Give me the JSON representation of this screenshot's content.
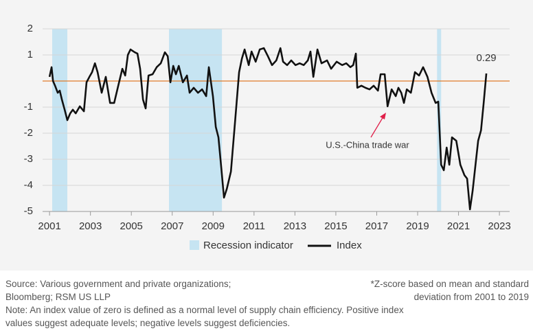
{
  "chart_data": {
    "type": "line",
    "xlim": [
      2000.66,
      2023.5
    ],
    "xticks": [
      2001,
      2003,
      2005,
      2007,
      2009,
      2011,
      2013,
      2015,
      2017,
      2019,
      2021,
      2023
    ],
    "ylim": [
      -5,
      2
    ],
    "yticks": [
      -5,
      -4,
      -3,
      -2,
      -1,
      1,
      2
    ],
    "grid": true,
    "reference_line": {
      "value": 0,
      "color": "#e07b2a"
    },
    "shaded_periods": {
      "name": "Recession indicator",
      "color": "#c6e4f2",
      "ranges": [
        [
          2001.13,
          2001.87
        ],
        [
          2006.84,
          2009.43
        ],
        [
          2019.95,
          2020.15
        ]
      ]
    },
    "series": [
      {
        "name": "Index",
        "color": "#111111",
        "x": [
          2001.0,
          2001.1,
          2001.17,
          2001.27,
          2001.4,
          2001.5,
          2001.6,
          2001.74,
          2001.87,
          2002.01,
          2002.14,
          2002.28,
          2002.48,
          2002.68,
          2002.81,
          2002.95,
          2003.08,
          2003.22,
          2003.35,
          2003.55,
          2003.75,
          2003.96,
          2004.16,
          2004.36,
          2004.56,
          2004.7,
          2004.83,
          2004.96,
          2005.17,
          2005.3,
          2005.43,
          2005.57,
          2005.7,
          2005.84,
          2006.04,
          2006.24,
          2006.44,
          2006.64,
          2006.78,
          2006.91,
          2007.05,
          2007.18,
          2007.32,
          2007.52,
          2007.72,
          2007.85,
          2008.05,
          2008.26,
          2008.46,
          2008.66,
          2008.79,
          2008.99,
          2009.13,
          2009.26,
          2009.4,
          2009.53,
          2009.67,
          2009.87,
          2010.07,
          2010.27,
          2010.41,
          2010.54,
          2010.74,
          2010.88,
          2011.08,
          2011.28,
          2011.48,
          2011.68,
          2011.88,
          2012.09,
          2012.29,
          2012.42,
          2012.62,
          2012.82,
          2013.03,
          2013.23,
          2013.43,
          2013.63,
          2013.76,
          2013.9,
          2014.1,
          2014.3,
          2014.57,
          2014.77,
          2015.04,
          2015.31,
          2015.51,
          2015.71,
          2015.85,
          2015.98,
          2016.05,
          2016.25,
          2016.45,
          2016.65,
          2016.85,
          2017.06,
          2017.19,
          2017.39,
          2017.53,
          2017.73,
          2017.93,
          2018.06,
          2018.2,
          2018.33,
          2018.47,
          2018.67,
          2018.87,
          2019.07,
          2019.27,
          2019.48,
          2019.68,
          2019.88,
          2020.01,
          2020.15,
          2020.28,
          2020.42,
          2020.55,
          2020.68,
          2020.89,
          2021.09,
          2021.29,
          2021.42,
          2021.56,
          2021.69,
          2021.83,
          2021.96,
          2022.1,
          2022.23,
          2022.36
        ],
        "values": [
          0.16,
          0.53,
          0,
          -0.18,
          -0.45,
          -0.37,
          -0.7,
          -1.1,
          -1.5,
          -1.24,
          -1.1,
          -1.24,
          -0.97,
          -1.16,
          -0.05,
          0.16,
          0.34,
          0.68,
          0.34,
          -0.45,
          0.16,
          -0.84,
          -0.84,
          -0.18,
          0.47,
          0.21,
          1.0,
          1.21,
          1.1,
          1.05,
          0.47,
          -0.71,
          -1.05,
          0.21,
          0.26,
          0.53,
          0.68,
          1.1,
          0.95,
          -0.05,
          0.58,
          0.26,
          0.58,
          -0.05,
          0.21,
          -0.45,
          -0.26,
          -0.45,
          -0.32,
          -0.58,
          0.53,
          -0.58,
          -1.76,
          -2.16,
          -3.34,
          -4.47,
          -4.13,
          -3.47,
          -1.58,
          0.34,
          0.87,
          1.21,
          0.61,
          1.13,
          0.74,
          1.21,
          1.26,
          0.95,
          0.61,
          0.79,
          1.26,
          0.74,
          0.61,
          0.79,
          0.61,
          0.68,
          0.61,
          0.79,
          1.13,
          0.16,
          1.21,
          0.68,
          0.79,
          0.47,
          0.74,
          0.61,
          0.68,
          0.53,
          0.61,
          1.05,
          -0.26,
          -0.18,
          -0.26,
          -0.32,
          -0.18,
          -0.37,
          0.26,
          0.26,
          -0.97,
          -0.32,
          -0.58,
          -0.26,
          -0.45,
          -0.84,
          -0.32,
          -0.45,
          0.34,
          0.21,
          0.53,
          0.16,
          -0.45,
          -0.84,
          -0.79,
          -3.21,
          -3.42,
          -2.55,
          -3.21,
          -2.16,
          -2.29,
          -3.21,
          -3.61,
          -3.74,
          -4.92,
          -4.21,
          -3.21,
          -2.29,
          -1.89,
          -0.84,
          0.29
        ]
      }
    ],
    "annotation": "U.S.-China trade war",
    "source": "Source: Various government and private organizations; Bloomberg; RSM US LLP",
    "footnote": "*Z-score based on mean and standard deviation from 2001 to 2019",
    "note": "Note: An index value of zero is defined as a normal level of supply chain efficiency. Positive index values suggest adequate levels; negative levels suggest deficiencies."
  }
}
